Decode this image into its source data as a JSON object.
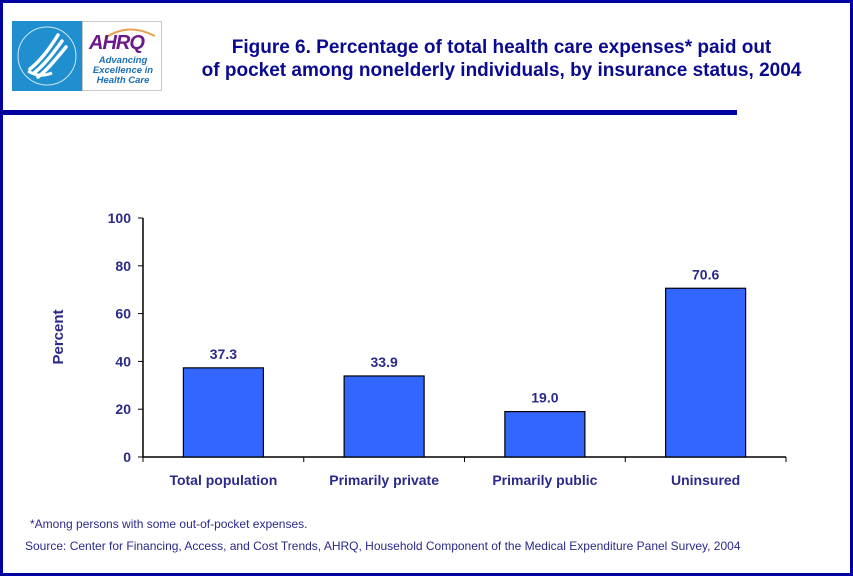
{
  "logo": {
    "hhs_alt": "HHS seal (eagle)",
    "ahrq_name": "AHRQ",
    "ahrq_tagline": [
      "Advancing",
      "Excellence in",
      "Health Care"
    ]
  },
  "header": {
    "title_line1": "Figure 6. Percentage of total health care expenses* paid out",
    "title_line2": "of pocket among nonelderly individuals, by insurance status, 2004"
  },
  "colors": {
    "border": "#0000a0",
    "title": "#0a0a90",
    "bar_fill": "#3366ff",
    "text": "#2a2a8a"
  },
  "chart_data": {
    "type": "bar",
    "title": "Figure 6. Percentage of total health care expenses* paid out of pocket among nonelderly individuals, by insurance status, 2004",
    "categories": [
      "Total population",
      "Primarily private",
      "Primarily public",
      "Uninsured"
    ],
    "values": [
      37.3,
      33.9,
      19.0,
      70.6
    ],
    "value_labels": [
      "37.3",
      "33.9",
      "19.0",
      "70.6"
    ],
    "xlabel": "",
    "ylabel": "Percent",
    "ylim": [
      0,
      100
    ],
    "yticks": [
      0,
      20,
      40,
      60,
      80,
      100
    ],
    "grid": false,
    "legend": "none"
  },
  "footer": {
    "note": "*Among persons with some out-of-pocket expenses.",
    "source": "Source: Center for Financing, Access, and Cost Trends, AHRQ, Household Component of the Medical Expenditure Panel Survey, 2004"
  }
}
